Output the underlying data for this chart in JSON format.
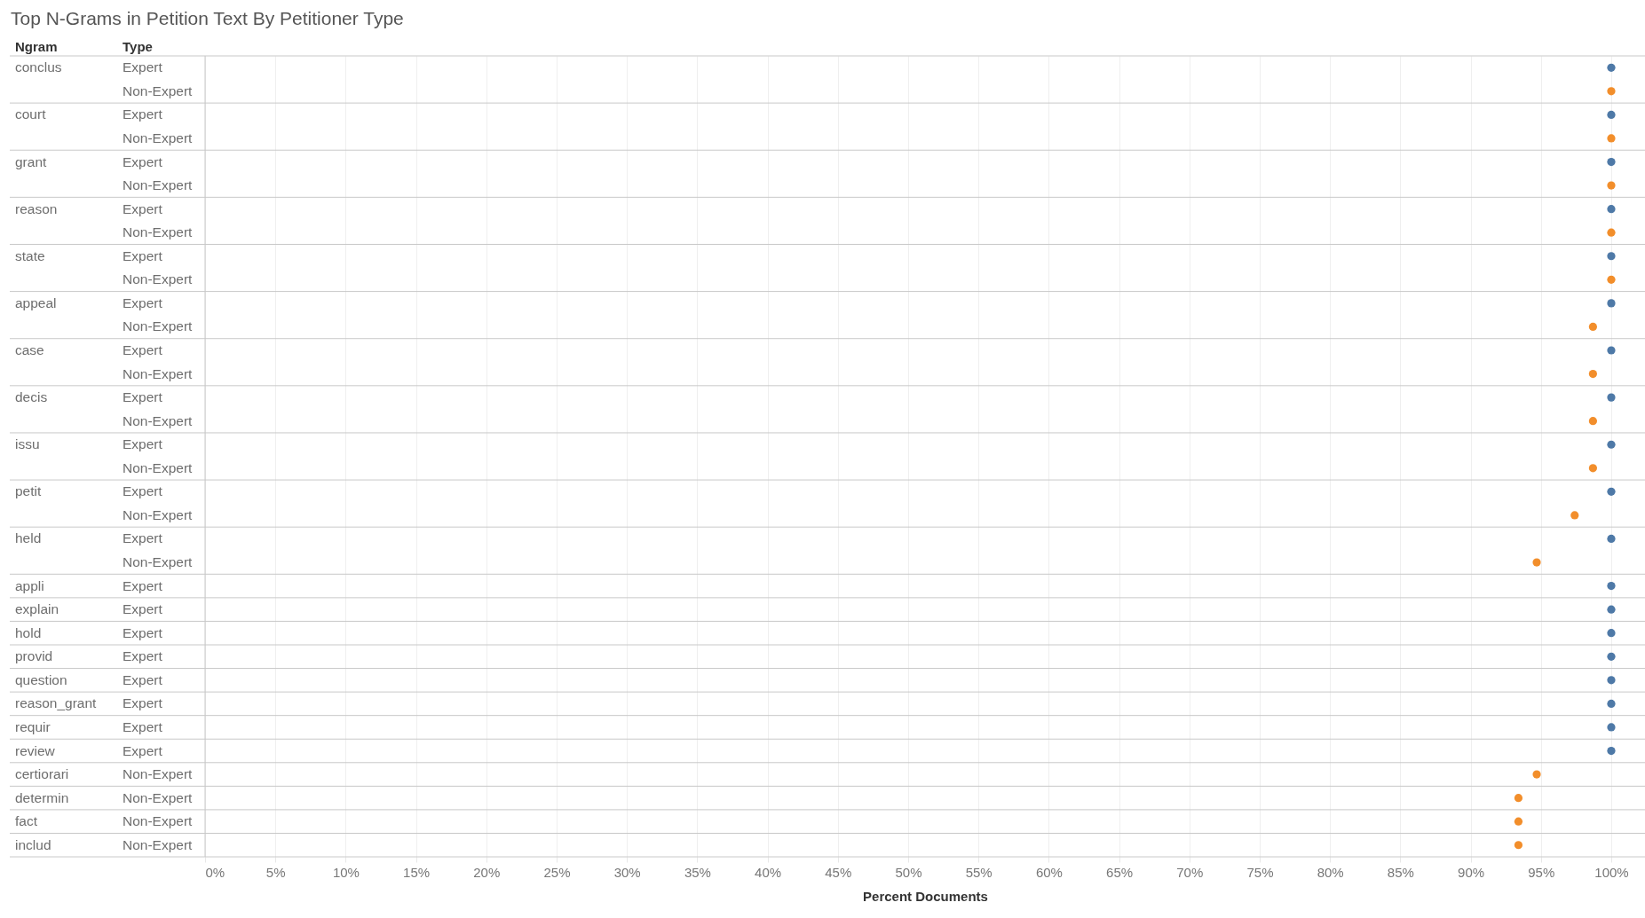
{
  "chart_data": {
    "type": "scatter",
    "orientation": "horizontal",
    "title": "Top N-Grams in Petition Text By Petitioner Type",
    "xlabel": "Percent Documents",
    "ylabel": "Ngram",
    "y2label": "Type",
    "categories": [
      "conclus",
      null,
      "court",
      null,
      "grant",
      null,
      "reason",
      null,
      "state",
      null,
      "appeal",
      null,
      "case",
      null,
      "decis",
      null,
      "issu",
      null,
      "petit",
      null,
      "held",
      null,
      "appli",
      "explain",
      "hold",
      "provid",
      "question",
      "reason_grant",
      "requir",
      "review",
      "certiorari",
      "determin",
      "fact",
      "includ"
    ],
    "y2_categories": [
      "Expert",
      "Non-Expert",
      "Expert",
      "Non-Expert",
      "Expert",
      "Non-Expert",
      "Expert",
      "Non-Expert",
      "Expert",
      "Non-Expert",
      "Expert",
      "Non-Expert",
      "Expert",
      "Non-Expert",
      "Expert",
      "Non-Expert",
      "Expert",
      "Non-Expert",
      "Expert",
      "Non-Expert",
      "Expert",
      "Non-Expert",
      "Expert",
      "Expert",
      "Expert",
      "Expert",
      "Expert",
      "Expert",
      "Expert",
      "Expert",
      "Non-Expert",
      "Non-Expert",
      "Non-Expert",
      "Non-Expert"
    ],
    "values": [
      100,
      100,
      100,
      100,
      100,
      100,
      100,
      100,
      100,
      100,
      100,
      98.7,
      100,
      98.7,
      100,
      98.7,
      100,
      98.7,
      100,
      97.4,
      100,
      94.7,
      100,
      100,
      100,
      100,
      100,
      100,
      100,
      100,
      94.7,
      93.4,
      93.4,
      93.4
    ],
    "colors": [
      "#4e79a7",
      "#f28e2b",
      "#4e79a7",
      "#f28e2b",
      "#4e79a7",
      "#f28e2b",
      "#4e79a7",
      "#f28e2b",
      "#4e79a7",
      "#f28e2b",
      "#4e79a7",
      "#f28e2b",
      "#4e79a7",
      "#f28e2b",
      "#4e79a7",
      "#f28e2b",
      "#4e79a7",
      "#f28e2b",
      "#4e79a7",
      "#f28e2b",
      "#4e79a7",
      "#f28e2b",
      "#4e79a7",
      "#4e79a7",
      "#4e79a7",
      "#4e79a7",
      "#4e79a7",
      "#4e79a7",
      "#4e79a7",
      "#4e79a7",
      "#f28e2b",
      "#f28e2b",
      "#f28e2b",
      "#f28e2b"
    ],
    "xlim": [
      0,
      102.4
    ],
    "xticks": [
      {
        "value": 0,
        "label": "0%"
      },
      {
        "value": 5,
        "label": "5%"
      },
      {
        "value": 10,
        "label": "10%"
      },
      {
        "value": 15,
        "label": "15%"
      },
      {
        "value": 20,
        "label": "20%"
      },
      {
        "value": 25,
        "label": "25%"
      },
      {
        "value": 30,
        "label": "30%"
      },
      {
        "value": 35,
        "label": "35%"
      },
      {
        "value": 40,
        "label": "40%"
      },
      {
        "value": 45,
        "label": "45%"
      },
      {
        "value": 50,
        "label": "50%"
      },
      {
        "value": 55,
        "label": "55%"
      },
      {
        "value": 60,
        "label": "60%"
      },
      {
        "value": 65,
        "label": "65%"
      },
      {
        "value": 70,
        "label": "70%"
      },
      {
        "value": 75,
        "label": "75%"
      },
      {
        "value": 80,
        "label": "80%"
      },
      {
        "value": 85,
        "label": "85%"
      },
      {
        "value": 90,
        "label": "90%"
      },
      {
        "value": 95,
        "label": "95%"
      },
      {
        "value": 100,
        "label": "100%"
      }
    ],
    "grid": "x",
    "marker": "circle"
  }
}
